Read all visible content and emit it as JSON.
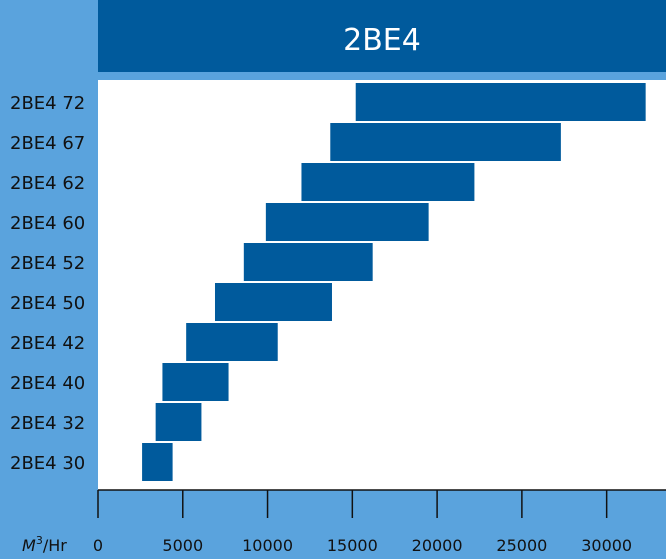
{
  "chart_data": {
    "type": "bar",
    "orientation": "horizontal-range",
    "title": "2BE4",
    "xlabel": "M³/Hr",
    "xlim": [
      0,
      33500
    ],
    "xticks": [
      0,
      5000,
      10000,
      15000,
      20000,
      25000,
      30000
    ],
    "categories": [
      "2BE4 72",
      "2BE4 67",
      "2BE4 62",
      "2BE4 60",
      "2BE4 52",
      "2BE4 50",
      "2BE4 42",
      "2BE4 40",
      "2BE4 32",
      "2BE4 30"
    ],
    "series": [
      {
        "ranges": [
          [
            15200,
            32300
          ],
          [
            13700,
            27300
          ],
          [
            12000,
            22200
          ],
          [
            9900,
            19500
          ],
          [
            8600,
            16200
          ],
          [
            6900,
            13800
          ],
          [
            5200,
            10600
          ],
          [
            3800,
            7700
          ],
          [
            3400,
            6100
          ],
          [
            2600,
            4400
          ]
        ]
      }
    ],
    "grid": false,
    "colors": {
      "bar": "#005a9c",
      "title_band": "#005a9c",
      "background": "#5aa3dd",
      "plot": "#ffffff"
    }
  }
}
